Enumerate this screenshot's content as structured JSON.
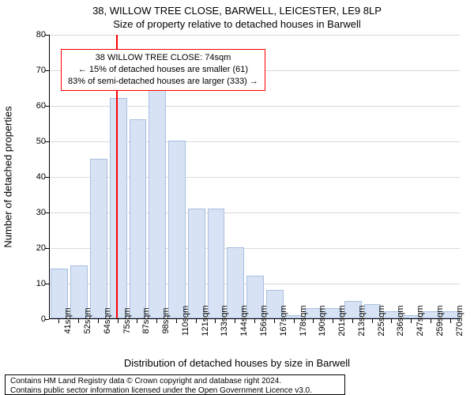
{
  "title": "38, WILLOW TREE CLOSE, BARWELL, LEICESTER, LE9 8LP",
  "subtitle": "Size of property relative to detached houses in Barwell",
  "ylabel": "Number of detached properties",
  "xlabel": "Distribution of detached houses by size in Barwell",
  "chart": {
    "type": "bar",
    "ylim": [
      0,
      80
    ],
    "ytick_step": 10,
    "grid_color": "#d9d9d9",
    "background_color": "#ffffff",
    "categories": [
      "41sqm",
      "52sqm",
      "64sqm",
      "75sqm",
      "87sqm",
      "98sqm",
      "110sqm",
      "121sqm",
      "133sqm",
      "144sqm",
      "156sqm",
      "167sqm",
      "178sqm",
      "190sqm",
      "201sqm",
      "213sqm",
      "225sqm",
      "236sqm",
      "247sqm",
      "259sqm",
      "270sqm"
    ],
    "values": [
      14,
      15,
      45,
      62,
      56,
      67,
      50,
      31,
      31,
      20,
      12,
      8,
      1,
      3,
      3,
      5,
      4,
      2,
      1,
      2,
      2
    ],
    "bar_fill": "#d7e3f4",
    "bar_border": "#a8bfe0",
    "bar_width_ratio": 0.88,
    "marker_value": 74,
    "marker_color": "#ff0000",
    "marker_width": 2
  },
  "annotation": {
    "lines": [
      "38 WILLOW TREE CLOSE: 74sqm",
      "← 15% of detached houses are smaller (61)",
      "83% of semi-detached houses are larger (333) →"
    ],
    "border_color": "#ff0000"
  },
  "footer": {
    "line1": "Contains HM Land Registry data © Crown copyright and database right 2024.",
    "line2": "Contains public sector information licensed under the Open Government Licence v3.0."
  },
  "fonts": {
    "title_size": 13,
    "label_size": 13,
    "tick_size": 11,
    "annotation_size": 11,
    "footer_size": 10
  },
  "colors": {
    "text": "#000000",
    "axis": "#000000"
  }
}
